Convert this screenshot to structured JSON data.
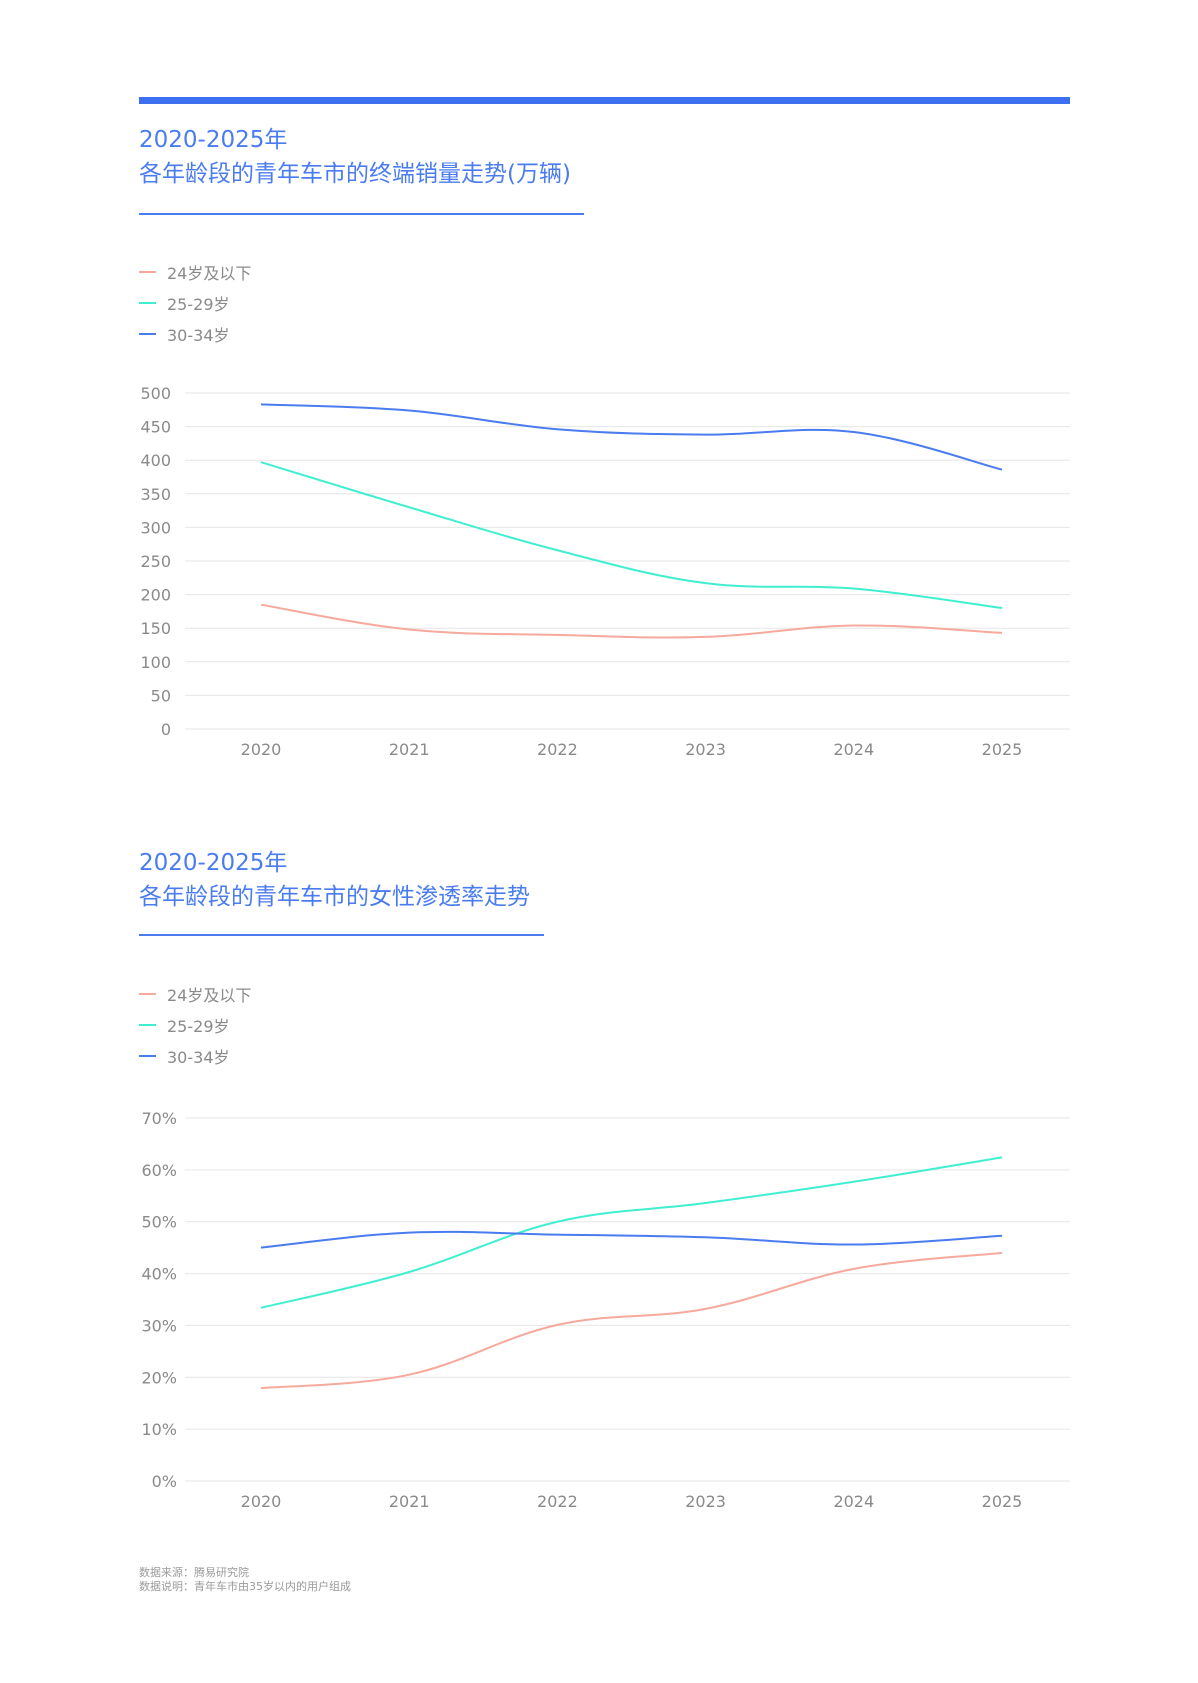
{
  "colors": {
    "accent": "#3d70f0",
    "series_24": "#f6a99c",
    "series_25_29": "#3fefcf",
    "series_30_34": "#4a7cf0",
    "grid": "#e6e6e6",
    "axis_text": "#8a8a8a"
  },
  "chart1": {
    "title_line1": "2020-2025年",
    "title_line2": "各年龄段的青年车市的终端销量走势(万辆)"
  },
  "chart2": {
    "title_line1": "2020-2025年",
    "title_line2": "各年龄段的青年车市的女性渗透率走势"
  },
  "legend": [
    "24岁及以下",
    "25-29岁",
    "30-34岁"
  ],
  "footer": {
    "source": "数据来源：腾易研究院",
    "note": "数据说明：青年车市由35岁以内的用户组成"
  },
  "chart_data": [
    {
      "type": "line",
      "title": "2020-2025年 各年龄段的青年车市的终端销量走势(万辆)",
      "x": [
        "2020",
        "2021",
        "2022",
        "2023",
        "2024",
        "2025"
      ],
      "ylim": [
        0,
        500
      ],
      "yticks": [
        "0",
        "50",
        "100",
        "150",
        "200",
        "250",
        "300",
        "350",
        "400",
        "450",
        "500"
      ],
      "grid": true,
      "legend_position": "top-left",
      "series": [
        {
          "name": "24岁及以下",
          "color": "#f6a99c",
          "values": [
            185,
            148,
            140,
            137,
            154,
            143
          ]
        },
        {
          "name": "25-29岁",
          "color": "#3fefcf",
          "values": [
            397,
            330,
            266,
            217,
            209,
            180
          ]
        },
        {
          "name": "30-34岁",
          "color": "#4a7cf0",
          "values": [
            483,
            474,
            446,
            438,
            442,
            386
          ]
        }
      ]
    },
    {
      "type": "line",
      "title": "2020-2025年 各年龄段的青年车市的女性渗透率走势",
      "x": [
        "2020",
        "2021",
        "2022",
        "2023",
        "2024",
        "2025"
      ],
      "ylim": [
        0,
        70
      ],
      "yticks": [
        "0%",
        "10%",
        "20%",
        "30%",
        "40%",
        "50%",
        "60%",
        "70%"
      ],
      "grid": true,
      "legend_position": "top-left",
      "series": [
        {
          "name": "24岁及以下",
          "color": "#f6a99c",
          "values": [
            17.9,
            20.5,
            30.1,
            33.2,
            40.9,
            44.0
          ]
        },
        {
          "name": "25-29岁",
          "color": "#3fefcf",
          "values": [
            33.4,
            40.3,
            50.0,
            53.6,
            57.7,
            62.4
          ]
        },
        {
          "name": "30-34岁",
          "color": "#4a7cf0",
          "values": [
            45.0,
            47.9,
            47.5,
            47.0,
            45.6,
            47.3
          ]
        }
      ]
    }
  ]
}
